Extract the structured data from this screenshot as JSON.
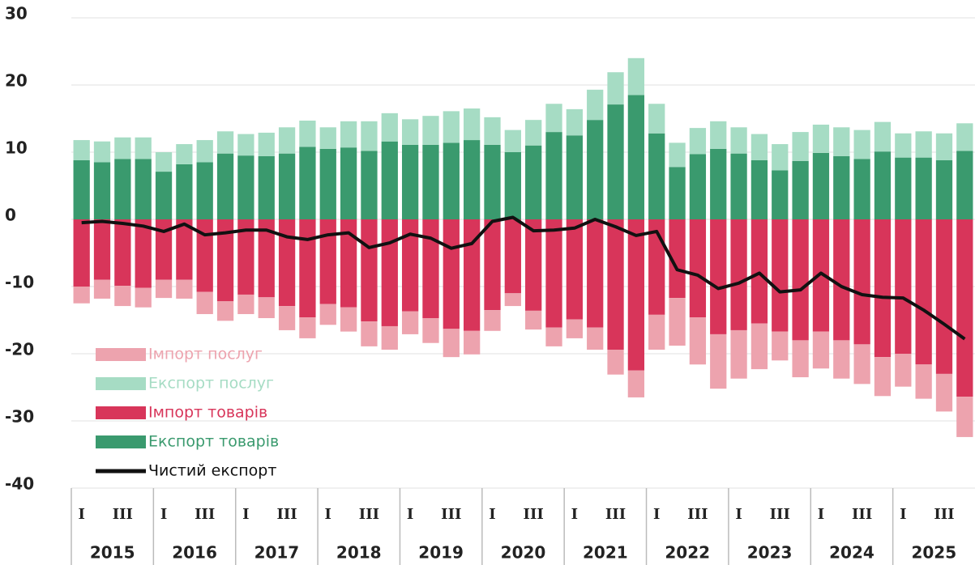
{
  "chart_data": {
    "type": "bar",
    "stacked": true,
    "categories": [
      "I",
      null,
      "III",
      null,
      "I",
      null,
      "III",
      null,
      "I",
      null,
      "III",
      null,
      "I",
      null,
      "III",
      null,
      "I",
      null,
      "III",
      null,
      "I",
      null,
      "III",
      null,
      "I",
      null,
      "III",
      null,
      "I",
      null,
      "III",
      null,
      "I",
      null,
      "III",
      null,
      "I",
      null,
      "III",
      null,
      "I",
      null,
      "III",
      null
    ],
    "years": [
      "2015",
      "2016",
      "2017",
      "2018",
      "2019",
      "2020",
      "2021",
      "2022",
      "2023",
      "2024",
      "2025"
    ],
    "ylim": [
      -40,
      30
    ],
    "yticks": [
      -40,
      -30,
      -20,
      -10,
      0,
      10,
      20,
      30
    ],
    "grid": true,
    "legend": "lower left",
    "series": [
      {
        "name": "Експорт товарів",
        "color": "#3a9a6e",
        "values": [
          8.8,
          8.5,
          9,
          9,
          7.1,
          8.2,
          8.5,
          9.8,
          9.5,
          9.4,
          9.8,
          10.8,
          10.5,
          10.7,
          10.2,
          11.6,
          11.1,
          11.1,
          11.4,
          11.8,
          11.1,
          10,
          11,
          13,
          12.5,
          14.8,
          17.1,
          18.5,
          12.8,
          7.8,
          9.7,
          10.5,
          9.8,
          8.8,
          7.3,
          8.7,
          9.9,
          9.4,
          9,
          10.1,
          9.2,
          9.2,
          8.8,
          10.2
        ]
      },
      {
        "name": "Імпорт товарів",
        "color": "#d8355a",
        "values": [
          -10,
          -9,
          -9.9,
          -10.2,
          -9,
          -9,
          -10.8,
          -12.2,
          -11.2,
          -11.6,
          -12.9,
          -14.6,
          -12.6,
          -13.1,
          -15.2,
          -15.9,
          -13.7,
          -14.7,
          -16.3,
          -16.6,
          -13.5,
          -11,
          -13.6,
          -16.1,
          -14.9,
          -16.1,
          -19.4,
          -22.5,
          -14.2,
          -11.7,
          -14.6,
          -17.1,
          -16.5,
          -15.5,
          -16.7,
          -18,
          -16.7,
          -18,
          -18.6,
          -20.5,
          -20,
          -21.6,
          -23,
          -26.4
        ]
      },
      {
        "name": "Експорт послуг",
        "color": "#a6dcc4",
        "values": [
          3,
          3.1,
          3.2,
          3.2,
          2.9,
          3,
          3.3,
          3.3,
          3.2,
          3.5,
          3.9,
          3.9,
          3.2,
          3.9,
          4.4,
          4.2,
          3.8,
          4.3,
          4.7,
          4.7,
          4.1,
          3.3,
          3.8,
          4.2,
          3.9,
          4.5,
          4.8,
          5.5,
          4.4,
          3.6,
          3.9,
          4.1,
          3.9,
          3.9,
          3.9,
          4.3,
          4.2,
          4.3,
          4.3,
          4.4,
          3.6,
          3.9,
          4,
          4.1
        ]
      },
      {
        "name": "Імпорт послуг",
        "color": "#eda3ae",
        "values": [
          -2.5,
          -2.8,
          -3,
          -2.9,
          -2.7,
          -2.8,
          -3.3,
          -2.9,
          -2.9,
          -3.1,
          -3.6,
          -3.1,
          -3.1,
          -3.6,
          -3.7,
          -3.5,
          -3.4,
          -3.7,
          -4.2,
          -3.5,
          -3.1,
          -1.9,
          -2.8,
          -2.8,
          -2.8,
          -3.3,
          -3.7,
          -4,
          -5.2,
          -7.1,
          -7,
          -8.1,
          -7.2,
          -6.8,
          -4.3,
          -5.5,
          -5.5,
          -5.7,
          -5.9,
          -5.8,
          -4.9,
          -5.1,
          -5.6,
          -6
        ]
      },
      {
        "name": "Чистий експорт",
        "type": "line",
        "color": "#111111",
        "values": [
          -0.5,
          -0.3,
          -0.6,
          -1,
          -1.8,
          -0.7,
          -2.3,
          -2,
          -1.6,
          -1.6,
          -2.6,
          -3,
          -2.3,
          -2,
          -4.2,
          -3.5,
          -2.2,
          -2.8,
          -4.3,
          -3.6,
          -0.3,
          0.3,
          -1.7,
          -1.6,
          -1.3,
          0,
          -1.1,
          -2.4,
          -1.8,
          -7.5,
          -8.3,
          -10.3,
          -9.5,
          -8,
          -10.8,
          -10.5,
          -8,
          -10,
          -11.2,
          -11.6,
          -11.7,
          -13.5,
          -15.6,
          -17.8
        ]
      }
    ]
  }
}
